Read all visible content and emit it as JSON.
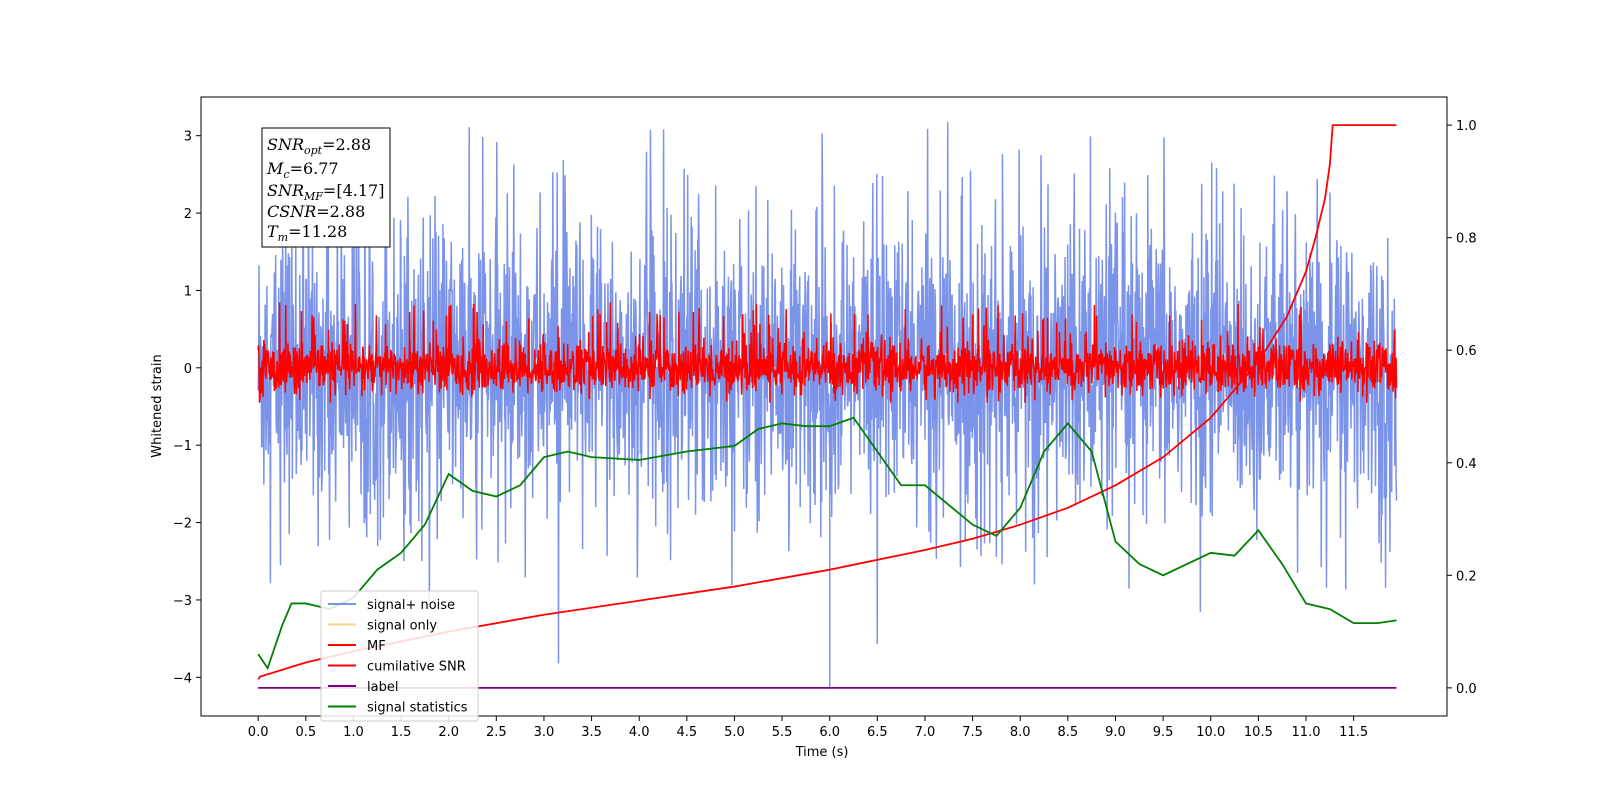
{
  "chart_data": {
    "type": "line",
    "xlabel": "Time (s)",
    "ylabel": "Whitened strain",
    "xlim": [
      -0.6,
      12.48
    ],
    "ylim_left": [
      -4.5,
      3.5
    ],
    "ylim_right": [
      -0.05,
      1.05
    ],
    "x_ticks": [
      "0.0",
      "0.5",
      "1.0",
      "1.5",
      "2.0",
      "2.5",
      "3.0",
      "3.5",
      "4.0",
      "4.5",
      "5.0",
      "5.5",
      "6.0",
      "6.5",
      "7.0",
      "7.5",
      "8.0",
      "8.5",
      "9.0",
      "9.5",
      "10.0",
      "10.5",
      "11.0",
      "11.5"
    ],
    "y_ticks_left": [
      "3",
      "2",
      "1",
      "0",
      "−1",
      "−2",
      "−3",
      "−4"
    ],
    "y_ticks_right": [
      "1.0",
      "0.8",
      "0.6",
      "0.4",
      "0.2",
      "0.0"
    ],
    "grid": false,
    "legend_position": "lower-left",
    "series": [
      {
        "name": "signal+ noise",
        "color": "#7b93e8",
        "axis": "left",
        "style": "noise",
        "description_values": {
          "x_range": [
            0.0,
            11.95
          ],
          "mean": 0.0,
          "min": -4.15,
          "max": 3.35
        }
      },
      {
        "name": "signal only",
        "color": "#f6d48a",
        "axis": "left",
        "values": []
      },
      {
        "name": "MF",
        "color": "#ff0000",
        "axis": "left",
        "style": "noise",
        "description_values": {
          "x_range": [
            0.0,
            11.95
          ],
          "mean": 0.0,
          "min": -0.45,
          "max": 1.0
        }
      },
      {
        "name": "cumilative SNR",
        "color": "#ff0000",
        "axis": "right",
        "x": [
          0.0,
          0.02,
          0.5,
          1.0,
          2.0,
          3.0,
          4.0,
          5.0,
          6.0,
          7.0,
          7.5,
          8.0,
          8.5,
          9.0,
          9.5,
          10.0,
          10.5,
          10.8,
          11.0,
          11.1,
          11.2,
          11.25,
          11.28,
          11.95
        ],
        "y": [
          0.015,
          0.02,
          0.045,
          0.065,
          0.1,
          0.13,
          0.155,
          0.18,
          0.21,
          0.245,
          0.265,
          0.29,
          0.32,
          0.36,
          0.41,
          0.48,
          0.58,
          0.66,
          0.74,
          0.8,
          0.87,
          0.93,
          1.0,
          1.0
        ]
      },
      {
        "name": "label",
        "color": "#800080",
        "axis": "right",
        "x": [
          0.0,
          11.95
        ],
        "y": [
          0.0,
          0.0
        ]
      },
      {
        "name": "signal statistics",
        "color": "#008000",
        "axis": "right",
        "x": [
          0.0,
          0.1,
          0.25,
          0.35,
          0.5,
          0.75,
          1.0,
          1.25,
          1.5,
          1.75,
          2.0,
          2.25,
          2.5,
          2.75,
          3.0,
          3.25,
          3.5,
          4.0,
          4.5,
          5.0,
          5.25,
          5.5,
          5.75,
          6.0,
          6.25,
          6.5,
          6.75,
          7.0,
          7.5,
          7.75,
          8.0,
          8.25,
          8.5,
          8.75,
          9.0,
          9.25,
          9.5,
          9.75,
          10.0,
          10.25,
          10.5,
          10.75,
          11.0,
          11.25,
          11.5,
          11.75,
          11.95
        ],
        "y": [
          0.06,
          0.035,
          0.11,
          0.15,
          0.15,
          0.14,
          0.16,
          0.21,
          0.24,
          0.29,
          0.38,
          0.35,
          0.34,
          0.36,
          0.41,
          0.42,
          0.41,
          0.405,
          0.42,
          0.43,
          0.46,
          0.47,
          0.465,
          0.465,
          0.48,
          0.42,
          0.36,
          0.36,
          0.29,
          0.27,
          0.32,
          0.42,
          0.47,
          0.42,
          0.26,
          0.22,
          0.2,
          0.22,
          0.24,
          0.235,
          0.28,
          0.22,
          0.15,
          0.14,
          0.115,
          0.115,
          0.12
        ]
      }
    ],
    "annotations": {
      "snr_opt": {
        "label": "SNR",
        "sub": "opt",
        "value": "=2.88"
      },
      "mc": {
        "label": "M",
        "sub": "c",
        "value": "=6.77"
      },
      "snr_mf": {
        "label": "SNR",
        "sub": "MF",
        "value": "=[4.17]"
      },
      "csnr": {
        "label": "CSNR",
        "value": "=2.88"
      },
      "tm": {
        "label": "T",
        "sub": "m",
        "value": "=11.28"
      }
    }
  }
}
